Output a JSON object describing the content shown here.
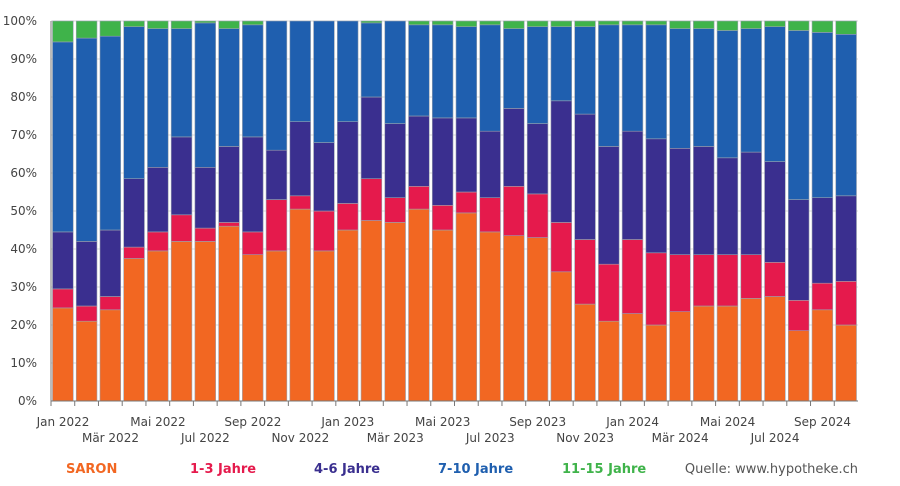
{
  "chart_data": {
    "type": "bar",
    "stacked": true,
    "percent": true,
    "ylim": [
      0,
      100
    ],
    "y_ticks": [
      "0%",
      "10%",
      "20%",
      "30%",
      "40%",
      "50%",
      "60%",
      "70%",
      "80%",
      "90%",
      "100%"
    ],
    "x_label_rows": [
      [
        "Jan 2022",
        "Mai 2022",
        "Sep 2022",
        "Jan 2023",
        "Mai 2023",
        "Sep 2023",
        "Jan 2024",
        "Mai 2024",
        "Sep 2024"
      ],
      [
        "Mär 2022",
        "Jul 2022",
        "Nov 2022",
        "Mär 2023",
        "Jul 2023",
        "Nov 2023",
        "Mär 2024",
        "Jul 2024"
      ]
    ],
    "categories": [
      "Jan 2022",
      "Feb 2022",
      "Mär 2022",
      "Apr 2022",
      "Mai 2022",
      "Jun 2022",
      "Jul 2022",
      "Aug 2022",
      "Sep 2022",
      "Okt 2022",
      "Nov 2022",
      "Dez 2022",
      "Jan 2023",
      "Feb 2023",
      "Mär 2023",
      "Apr 2023",
      "Mai 2023",
      "Jun 2023",
      "Jul 2023",
      "Aug 2023",
      "Sep 2023",
      "Okt 2023",
      "Nov 2023",
      "Dez 2023",
      "Jan 2024",
      "Feb 2024",
      "Mär 2024",
      "Apr 2024",
      "Mai 2024",
      "Jun 2024",
      "Jul 2024",
      "Aug 2024",
      "Sep 2024",
      "Okt 2024"
    ],
    "series": [
      {
        "name": "SARON",
        "color": "#f26722",
        "values": [
          24.5,
          21,
          24,
          37.5,
          39.5,
          42,
          42,
          46,
          38.5,
          39.5,
          50.5,
          39.5,
          45,
          47.5,
          47,
          50.5,
          45,
          49.5,
          44.5,
          43.5,
          43,
          34,
          25.5,
          21,
          23,
          20,
          23.5,
          25,
          25,
          27,
          27.5,
          18.5,
          24,
          20
        ]
      },
      {
        "name": "1-3 Jahre",
        "color": "#e51a4c",
        "values": [
          5,
          4,
          3.5,
          3,
          5,
          7,
          3.5,
          1,
          6,
          13.5,
          3.5,
          10.5,
          7,
          11,
          6.5,
          6,
          6.5,
          5.5,
          9,
          13,
          11.5,
          13,
          17,
          15,
          19.5,
          19,
          15,
          13.5,
          13.5,
          11.5,
          9,
          8,
          7,
          11.5
        ]
      },
      {
        "name": "4-6 Jahre",
        "color": "#3a2f8f",
        "values": [
          15,
          17,
          17.5,
          18,
          17,
          20.5,
          16,
          20,
          25,
          13,
          19.5,
          18,
          21.5,
          21.5,
          19.5,
          18.5,
          23,
          19.5,
          17.5,
          20.5,
          18.5,
          32,
          33,
          31,
          28.5,
          30,
          28,
          28.5,
          25.5,
          27,
          26.5,
          26.5,
          22.5,
          22.5
        ]
      },
      {
        "name": "7-10 Jahre",
        "color": "#1f5faf",
        "values": [
          50,
          53.5,
          51,
          40,
          36.5,
          28.5,
          38,
          31,
          29.5,
          34,
          26.5,
          32,
          26.5,
          19.5,
          27,
          24,
          24.5,
          24,
          28,
          21,
          25.5,
          19.5,
          23,
          32,
          28,
          30,
          31.5,
          31,
          33.5,
          32.5,
          35.5,
          44.5,
          43.5,
          42.5
        ]
      },
      {
        "name": "11-15 Jahre",
        "color": "#3fb34a",
        "values": [
          5.5,
          4.5,
          4,
          1.5,
          2,
          2,
          0.5,
          2,
          1,
          0,
          0,
          0,
          0,
          0.5,
          0,
          1,
          1,
          1.5,
          1,
          2,
          1.5,
          1.5,
          1.5,
          1,
          1,
          1,
          2,
          2,
          2.5,
          2,
          1.5,
          2.5,
          3,
          3.5
        ]
      }
    ]
  },
  "legend": [
    {
      "label": "SARON",
      "color": "#f26722"
    },
    {
      "label": "1-3 Jahre",
      "color": "#e51a4c"
    },
    {
      "label": "4-6 Jahre",
      "color": "#3a2f8f"
    },
    {
      "label": "7-10 Jahre",
      "color": "#1f5faf"
    },
    {
      "label": "11-15 Jahre",
      "color": "#3fb34a"
    }
  ],
  "source": "Quelle: www.hypotheke.ch"
}
